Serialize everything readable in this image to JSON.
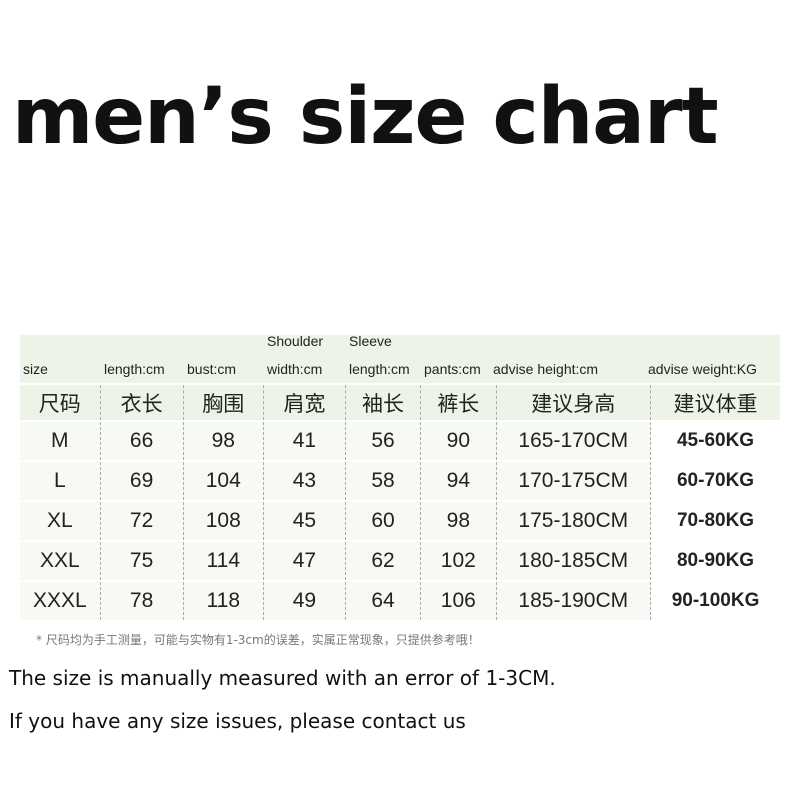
{
  "title": "men’s size chart",
  "headers_en": [
    {
      "top": "",
      "bottom": "size"
    },
    {
      "top": "",
      "bottom": "length:cm"
    },
    {
      "top": "",
      "bottom": "bust:cm"
    },
    {
      "top": "Shoulder",
      "bottom": "width:cm"
    },
    {
      "top": "Sleeve",
      "bottom": "length:cm"
    },
    {
      "top": "",
      "bottom": "pants:cm"
    },
    {
      "top": "",
      "bottom": "advise height:cm"
    },
    {
      "top": "",
      "bottom": "advise weight:KG"
    }
  ],
  "headers_cn": [
    "尺码",
    "衣长",
    "胸围",
    "肩宽",
    "袖长",
    "裤长",
    "建议身高",
    "建议体重"
  ],
  "rows": [
    [
      "M",
      "66",
      "98",
      "41",
      "56",
      "90",
      "165-170CM",
      "45-60KG"
    ],
    [
      "L",
      "69",
      "104",
      "43",
      "58",
      "94",
      "170-175CM",
      "60-70KG"
    ],
    [
      "XL",
      "72",
      "108",
      "45",
      "60",
      "98",
      "175-180CM",
      "70-80KG"
    ],
    [
      "XXL",
      "75",
      "114",
      "47",
      "62",
      "102",
      "180-185CM",
      "80-90KG"
    ],
    [
      "XXXL",
      "78",
      "118",
      "49",
      "64",
      "106",
      "185-190CM",
      "90-100KG"
    ]
  ],
  "note_cn": "* 尺码均为手工测量，可能与实物有1-3cm的误差，实属正常现象，只提供参考哦！",
  "line1": "The size is manually measured with an error of 1-3CM.",
  "line2": "If you have any size issues, please contact us"
}
